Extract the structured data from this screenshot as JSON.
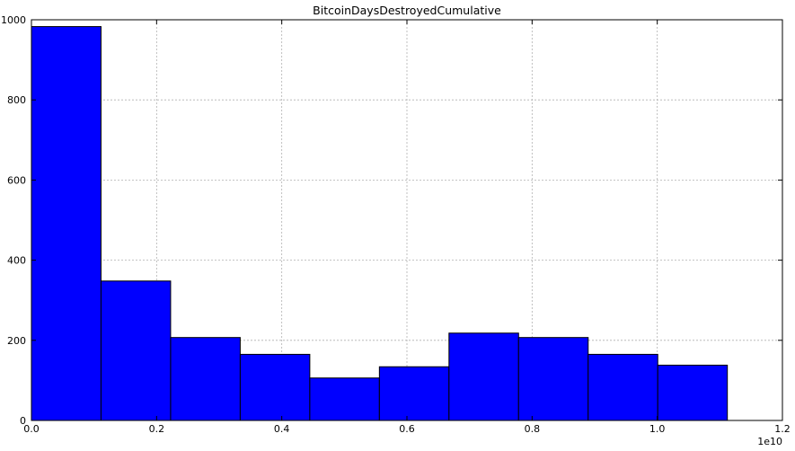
{
  "chart_data": {
    "type": "bar",
    "title": "BitcoinDaysDestroyedCumulative",
    "xlabel": "",
    "ylabel": "",
    "x_offset_label": "1e10",
    "bar_color": "#0000ff",
    "bins": [
      {
        "x0": 0.0,
        "x1": 0.1112,
        "count": 983
      },
      {
        "x0": 0.1112,
        "x1": 0.2224,
        "count": 348
      },
      {
        "x0": 0.2224,
        "x1": 0.3336,
        "count": 207
      },
      {
        "x0": 0.3336,
        "x1": 0.4448,
        "count": 165
      },
      {
        "x0": 0.4448,
        "x1": 0.556,
        "count": 106
      },
      {
        "x0": 0.556,
        "x1": 0.6672,
        "count": 134
      },
      {
        "x0": 0.6672,
        "x1": 0.7784,
        "count": 218
      },
      {
        "x0": 0.7784,
        "x1": 0.8896,
        "count": 207
      },
      {
        "x0": 0.8896,
        "x1": 1.0008,
        "count": 165
      },
      {
        "x0": 1.0008,
        "x1": 1.112,
        "count": 138
      }
    ],
    "xlim": [
      0.0,
      1.2
    ],
    "ylim": [
      0,
      1000
    ],
    "x_ticks": [
      "0.0",
      "0.2",
      "0.4",
      "0.6",
      "0.8",
      "1.0",
      "1.2"
    ],
    "y_ticks": [
      "0",
      "200",
      "400",
      "600",
      "800",
      "1000"
    ],
    "grid": true
  }
}
